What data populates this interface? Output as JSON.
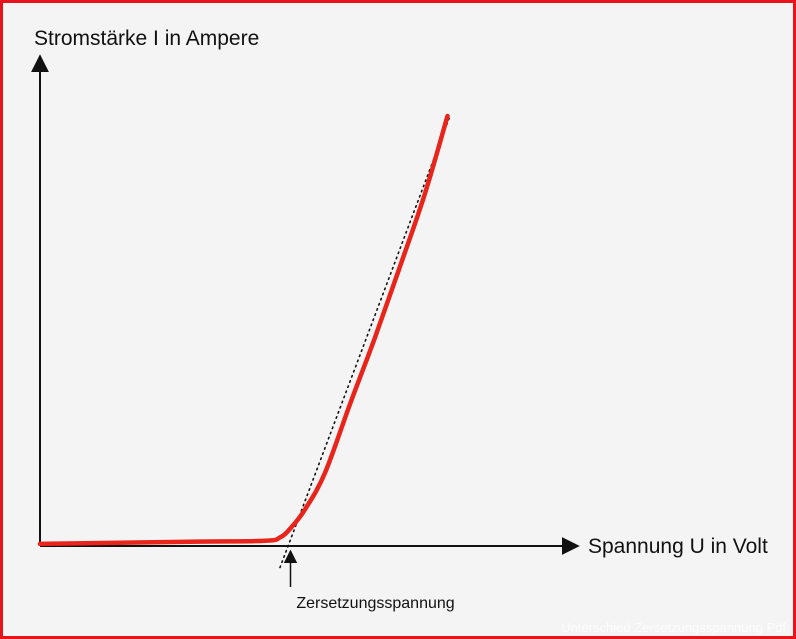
{
  "chart_data": {
    "type": "line",
    "title": "",
    "ylabel": "Stromstärke I in Ampere",
    "xlabel": "Spannung U in Volt",
    "xlim": [
      0,
      10
    ],
    "ylim": [
      0,
      10
    ],
    "grid": false,
    "legend": "none",
    "series": [
      {
        "color": "#e8241b",
        "x": [
          0,
          3.0,
          4.5,
          4.8,
          5.0,
          5.3,
          5.7,
          6.2,
          6.7,
          7.2,
          7.7,
          8.15
        ],
        "y": [
          0.05,
          0.1,
          0.12,
          0.2,
          0.4,
          0.85,
          1.7,
          3.3,
          4.85,
          6.5,
          8.2,
          10.0
        ]
      }
    ],
    "tangent": {
      "style": "dotted",
      "color": "#111111",
      "x": [
        4.8,
        8.2
      ],
      "y": [
        -0.5,
        10.0
      ]
    },
    "annotations": [
      {
        "text": "Zersetzungsspannung",
        "x": 5.0,
        "arrow": true
      }
    ]
  },
  "watermark": "Unterschied Zersetzungsspannung Pdf"
}
